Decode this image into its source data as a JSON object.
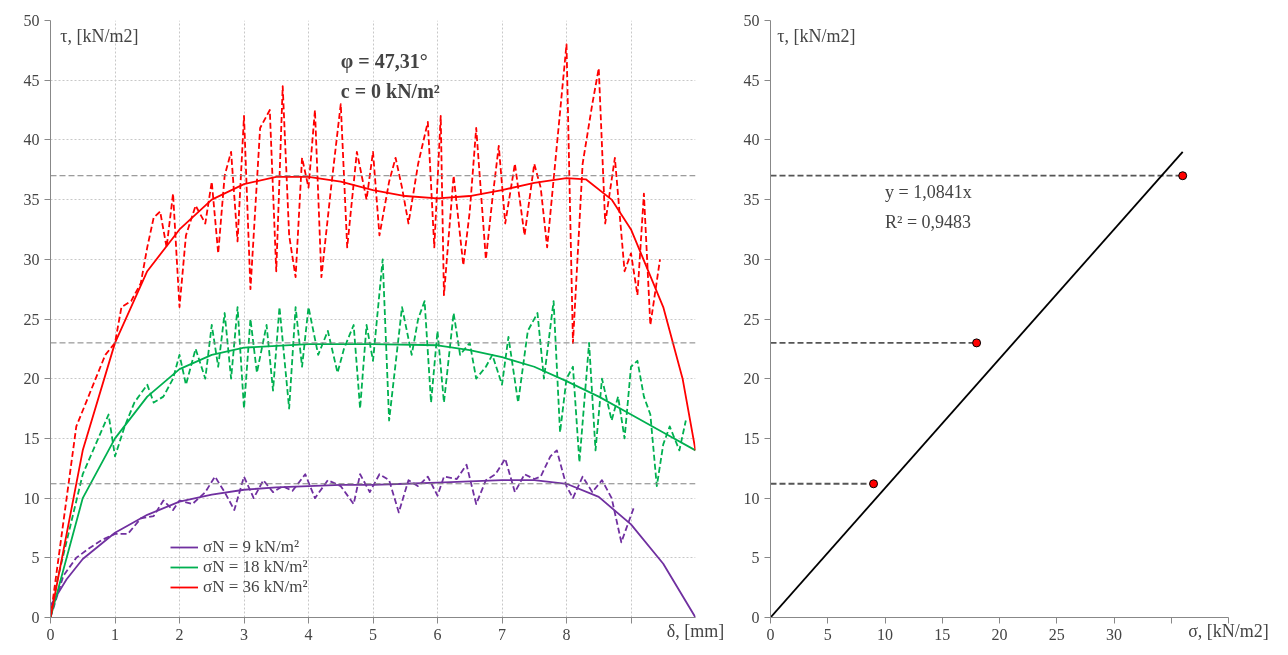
{
  "chart_data": [
    {
      "type": "line",
      "xlabel": "δ, [mm]",
      "ylabel": "τ, [kN/m2]",
      "annotations": [
        "φ = 47,31°",
        "c = 0 kN/m²"
      ],
      "xlim": [
        0,
        10
      ],
      "ylim": [
        0,
        50
      ],
      "xticks": [
        0,
        1,
        2,
        3,
        4,
        5,
        6,
        7,
        8,
        {
          "value": 9,
          "label": null
        }
      ],
      "yticks": [
        0,
        5,
        10,
        15,
        20,
        25,
        30,
        35,
        40,
        45,
        50
      ],
      "grid": true,
      "legend": "bottom left",
      "ref_lines": [
        {
          "axis": "y",
          "value": 11.2,
          "label": null,
          "color": "#808080",
          "line_style": "dashed"
        },
        {
          "axis": "y",
          "value": 23.0,
          "label": null,
          "color": "#808080",
          "line_style": "dashed"
        },
        {
          "axis": "y",
          "value": 37.0,
          "label": null,
          "color": "#808080",
          "line_style": "dashed"
        }
      ],
      "series": [
        {
          "color": "#7030a0",
          "line_style": "dashed",
          "x": [
            0,
            0.2,
            0.4,
            0.6,
            0.8,
            1.0,
            1.2,
            1.4,
            1.6,
            1.75,
            1.9,
            2.0,
            2.2,
            2.4,
            2.55,
            2.7,
            2.85,
            3.0,
            3.15,
            3.3,
            3.45,
            3.6,
            3.75,
            3.95,
            4.1,
            4.3,
            4.5,
            4.7,
            4.8,
            4.95,
            5.1,
            5.25,
            5.4,
            5.55,
            5.7,
            5.85,
            6.0,
            6.1,
            6.3,
            6.45,
            6.6,
            6.75,
            6.9,
            7.05,
            7.2,
            7.35,
            7.5,
            7.6,
            7.75,
            7.85,
            8.0,
            8.1,
            8.25,
            8.4,
            8.55,
            8.7,
            8.85,
            9.05
          ],
          "values": [
            0,
            3.5,
            5,
            5.8,
            6.5,
            7,
            7,
            8.3,
            8.5,
            9.8,
            9,
            9.8,
            9.5,
            10.5,
            11.8,
            10.5,
            9,
            11.8,
            10,
            11.5,
            10.5,
            11,
            10.6,
            12,
            10,
            11.5,
            11,
            9.5,
            12,
            10.5,
            12,
            11.5,
            8.8,
            11.5,
            11,
            11.8,
            10.2,
            11.8,
            11.6,
            12.8,
            9.5,
            11.5,
            12,
            13.3,
            10.5,
            12,
            11.6,
            11.8,
            13.5,
            14,
            11,
            10,
            11.8,
            10.5,
            11.5,
            10,
            6.3,
            9.3
          ]
        },
        {
          "color": "#00b050",
          "line_style": "dashed",
          "x": [
            0,
            0.1,
            0.3,
            0.5,
            0.7,
            0.9,
            1.0,
            1.15,
            1.3,
            1.5,
            1.6,
            1.75,
            1.9,
            2.0,
            2.1,
            2.25,
            2.4,
            2.5,
            2.6,
            2.7,
            2.8,
            2.9,
            3.0,
            3.1,
            3.2,
            3.35,
            3.45,
            3.55,
            3.7,
            3.8,
            3.9,
            4.0,
            4.15,
            4.3,
            4.45,
            4.55,
            4.7,
            4.8,
            4.9,
            5.0,
            5.15,
            5.25,
            5.45,
            5.6,
            5.7,
            5.8,
            5.9,
            6.0,
            6.1,
            6.25,
            6.35,
            6.5,
            6.6,
            6.75,
            6.85,
            7.0,
            7.1,
            7.25,
            7.4,
            7.55,
            7.65,
            7.8,
            7.9,
            8.0,
            8.1,
            8.2,
            8.35,
            8.45,
            8.55,
            8.7,
            8.8,
            8.9,
            9.0,
            9.1,
            9.2,
            9.3,
            9.4,
            9.5,
            9.6,
            9.75,
            9.85
          ],
          "values": [
            0,
            3,
            7.5,
            12,
            14.5,
            17,
            13.5,
            16,
            18,
            19.5,
            18,
            18.5,
            20,
            22,
            19.5,
            22.5,
            20,
            24.5,
            21,
            25.5,
            20,
            26,
            17.5,
            25,
            20.5,
            24.5,
            19,
            26,
            17.5,
            26,
            21,
            26,
            22,
            24,
            20.5,
            22.5,
            24.5,
            17.5,
            24.5,
            21.5,
            30,
            16.5,
            26,
            22,
            25,
            26.5,
            18,
            24,
            18,
            25.5,
            22,
            23,
            20,
            21,
            22,
            19.5,
            23.5,
            18,
            24,
            25.5,
            20,
            26.5,
            15.5,
            20,
            21,
            13,
            23,
            14,
            20,
            16.5,
            18.5,
            15,
            21,
            21.5,
            18.5,
            17,
            11,
            14.5,
            16,
            14,
            16.5
          ]
        },
        {
          "color": "#ff0000",
          "line_style": "dashed",
          "x": [
            0,
            0.2,
            0.4,
            0.55,
            0.7,
            0.85,
            1.0,
            1.1,
            1.25,
            1.4,
            1.5,
            1.6,
            1.7,
            1.8,
            1.9,
            2.0,
            2.1,
            2.25,
            2.4,
            2.5,
            2.6,
            2.7,
            2.8,
            2.9,
            3.0,
            3.1,
            3.25,
            3.4,
            3.5,
            3.6,
            3.7,
            3.8,
            3.9,
            4.0,
            4.1,
            4.2,
            4.35,
            4.5,
            4.6,
            4.75,
            4.9,
            5.0,
            5.1,
            5.25,
            5.35,
            5.45,
            5.55,
            5.7,
            5.85,
            5.95,
            6.05,
            6.1,
            6.25,
            6.4,
            6.5,
            6.6,
            6.75,
            6.85,
            6.95,
            7.05,
            7.2,
            7.35,
            7.5,
            7.6,
            7.7,
            7.85,
            8.0,
            8.1,
            8.25,
            8.4,
            8.5,
            8.6,
            8.75,
            8.9,
            9.0,
            9.1,
            9.2,
            9.3,
            9.45
          ],
          "values": [
            0,
            8,
            16,
            18,
            20,
            22,
            23,
            26,
            26.5,
            28,
            31,
            33.5,
            34,
            31,
            35.5,
            26,
            32,
            34.5,
            33,
            36.5,
            30.5,
            37,
            39,
            31.5,
            42,
            27.5,
            41,
            42.5,
            29,
            44.5,
            32,
            28.5,
            38.5,
            36,
            42.5,
            28.5,
            36,
            43,
            31,
            39,
            35,
            39,
            32,
            36.5,
            38.5,
            36,
            33,
            38,
            41.5,
            31,
            42,
            27,
            37,
            29.5,
            34,
            41,
            30,
            35,
            39.5,
            33,
            38,
            32,
            38,
            36,
            31,
            39.5,
            48,
            23,
            38,
            43,
            46,
            33,
            38.5,
            29,
            30.5,
            27,
            35.5,
            24.5,
            30
          ]
        },
        {
          "name": "σN = 9 kN/m²",
          "color": "#7030a0",
          "line_style": "solid",
          "x": [
            0,
            0.25,
            0.5,
            1,
            1.5,
            2,
            2.5,
            3,
            3.5,
            4,
            4.5,
            5,
            5.5,
            6,
            6.5,
            7,
            7.5,
            8,
            8.5,
            9,
            9.5,
            10
          ],
          "values": [
            1.0,
            3.2,
            4.9,
            7.1,
            8.6,
            9.7,
            10.3,
            10.7,
            10.9,
            11.0,
            11.1,
            11.1,
            11.2,
            11.3,
            11.4,
            11.5,
            11.5,
            11.2,
            10.1,
            7.8,
            4.5,
            0
          ]
        },
        {
          "name": "σN = 18 kN/m²",
          "color": "#00b050",
          "line_style": "solid",
          "x": [
            0,
            0.25,
            0.5,
            1,
            1.5,
            2,
            2.5,
            3,
            4,
            5,
            6,
            6.5,
            7,
            7.5,
            8,
            8.5,
            9,
            9.5,
            10
          ],
          "values": [
            0,
            5,
            10,
            15,
            18.5,
            20.8,
            22,
            22.6,
            22.9,
            22.9,
            22.8,
            22.4,
            21.8,
            21,
            19.8,
            18.5,
            17,
            15.5,
            14
          ]
        },
        {
          "name": "σN = 36 kN/m²",
          "color": "#ff0000",
          "line_style": "solid",
          "x": [
            0,
            0.5,
            1,
            1.5,
            2,
            2.5,
            3,
            3.5,
            4,
            4.5,
            5,
            5.5,
            6,
            6.5,
            7,
            7.5,
            8,
            8.3,
            8.7,
            9,
            9.5,
            9.8,
            10
          ],
          "values": [
            0,
            14,
            23,
            29,
            32.5,
            35,
            36.3,
            36.9,
            36.9,
            36.5,
            35.8,
            35.3,
            35.1,
            35.3,
            35.8,
            36.4,
            36.8,
            36.7,
            35,
            32.5,
            26,
            20,
            14
          ]
        }
      ]
    },
    {
      "type": "scatter",
      "xlabel": "σ, [kN/m2]",
      "ylabel": "τ, [kN/m2]",
      "annotations": [
        "y = 1,0841x",
        "R² = 0,9483"
      ],
      "xlim": [
        0,
        40
      ],
      "ylim": [
        0,
        50
      ],
      "xticks": [
        0,
        5,
        10,
        15,
        20,
        25,
        30,
        {
          "value": 35,
          "label": null
        },
        {
          "value": 40,
          "label": null
        }
      ],
      "yticks": [
        0,
        5,
        10,
        15,
        20,
        25,
        30,
        35,
        40,
        45,
        50
      ],
      "grid": false,
      "series": [
        {
          "type": "line",
          "color": "#555555",
          "line_style": "dashed",
          "x": [
            0,
            9
          ],
          "values": [
            11.2,
            11.2
          ]
        },
        {
          "type": "line",
          "color": "#555555",
          "line_style": "dashed",
          "x": [
            0,
            18
          ],
          "values": [
            23.0,
            23.0
          ]
        },
        {
          "type": "line",
          "color": "#555555",
          "line_style": "dashed",
          "x": [
            0,
            36
          ],
          "values": [
            37.0,
            37.0
          ]
        },
        {
          "type": "line",
          "color": "#000000",
          "line_style": "solid",
          "x": [
            0,
            36
          ],
          "values": [
            0,
            39.0
          ]
        },
        {
          "color": "#ff0000",
          "marker": "circle",
          "x": [
            9,
            18,
            36
          ],
          "values": [
            11.2,
            23.0,
            37.0
          ]
        }
      ]
    }
  ]
}
